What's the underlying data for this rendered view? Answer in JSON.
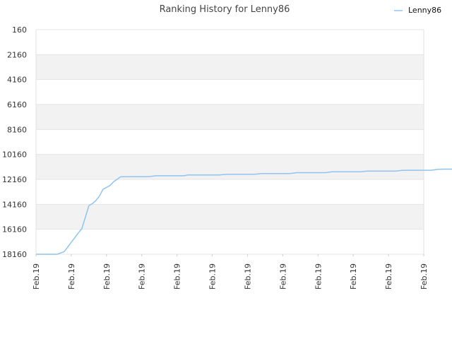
{
  "chart_data": {
    "type": "line",
    "title": "Ranking History for Lenny86",
    "xlabel": "",
    "ylabel": "",
    "y_inverted": true,
    "ylim": [
      160,
      18160
    ],
    "y_ticks": [
      "160",
      "2160",
      "4160",
      "6160",
      "8160",
      "10160",
      "12160",
      "14160",
      "16160",
      "18160"
    ],
    "x_ticks": [
      "Feb.19",
      "Feb.19",
      "Feb.19",
      "Feb.19",
      "Feb.19",
      "Feb.19",
      "Feb.19",
      "Feb.19",
      "Feb.19",
      "Feb.19",
      "Feb.19",
      "Feb.19"
    ],
    "grid": true,
    "banded_background": true,
    "legend_position": "top-right",
    "series": [
      {
        "name": "Lenny86",
        "color": "#90c4ee",
        "x": [
          0.0,
          0.6,
          0.8,
          1.2,
          1.3,
          1.5,
          1.6,
          1.7,
          1.8,
          1.9,
          2.1,
          2.2,
          2.4,
          2.8,
          3.2,
          3.4,
          4.2,
          4.3,
          5.2,
          5.4,
          6.2,
          6.4,
          7.2,
          7.4,
          8.2,
          8.4,
          9.2,
          9.4,
          10.2,
          10.4,
          11.2,
          11.4,
          11.6,
          12.0
        ],
        "values": [
          18160,
          18160,
          17950,
          16450,
          16100,
          14260,
          14100,
          13850,
          13500,
          12950,
          12650,
          12350,
          11950,
          11940,
          11940,
          11870,
          11870,
          11810,
          11810,
          11750,
          11750,
          11690,
          11690,
          11620,
          11620,
          11550,
          11550,
          11490,
          11490,
          11430,
          11430,
          11350,
          11340,
          11340
        ]
      }
    ]
  }
}
